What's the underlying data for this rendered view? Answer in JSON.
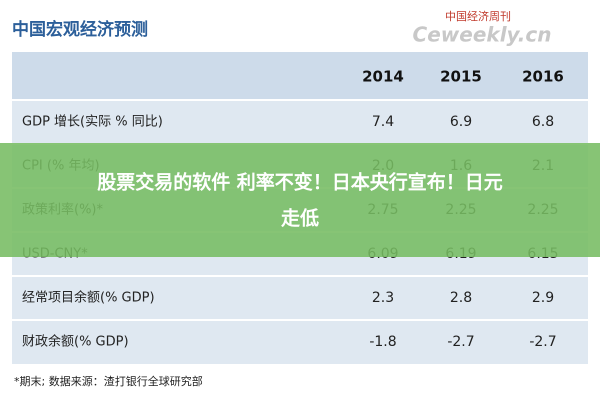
{
  "header": {
    "title": "中国宏观经济预测",
    "logo": "中国经济周刊",
    "logo_sub": "Ceweekly.cn"
  },
  "table": {
    "columns": [
      "2014",
      "2015",
      "2016"
    ],
    "rows": [
      [
        "GDP 增长(实际 % 同比)",
        "7.4",
        "6.9",
        "6.8"
      ],
      [
        "CPI (% 年均)",
        "2.0",
        "1.6",
        "2.1"
      ],
      [
        "政策利率(%)*",
        "2.75",
        "2.25",
        "2.25"
      ],
      [
        "USD-CNY*",
        "6.09",
        "6.19",
        "6.15"
      ],
      [
        "经常项目余额(% GDP)",
        "2.3",
        "2.8",
        "2.9"
      ],
      [
        "财政余额(% GDP)",
        "-1.8",
        "-2.7",
        "-2.7"
      ]
    ]
  },
  "footnote": "*期末;   数据来源：渣打银行全球研究部",
  "overlay": {
    "line1": "股票交易的软件 利率不变！日本央行宣布！日元",
    "line2": "走低"
  }
}
